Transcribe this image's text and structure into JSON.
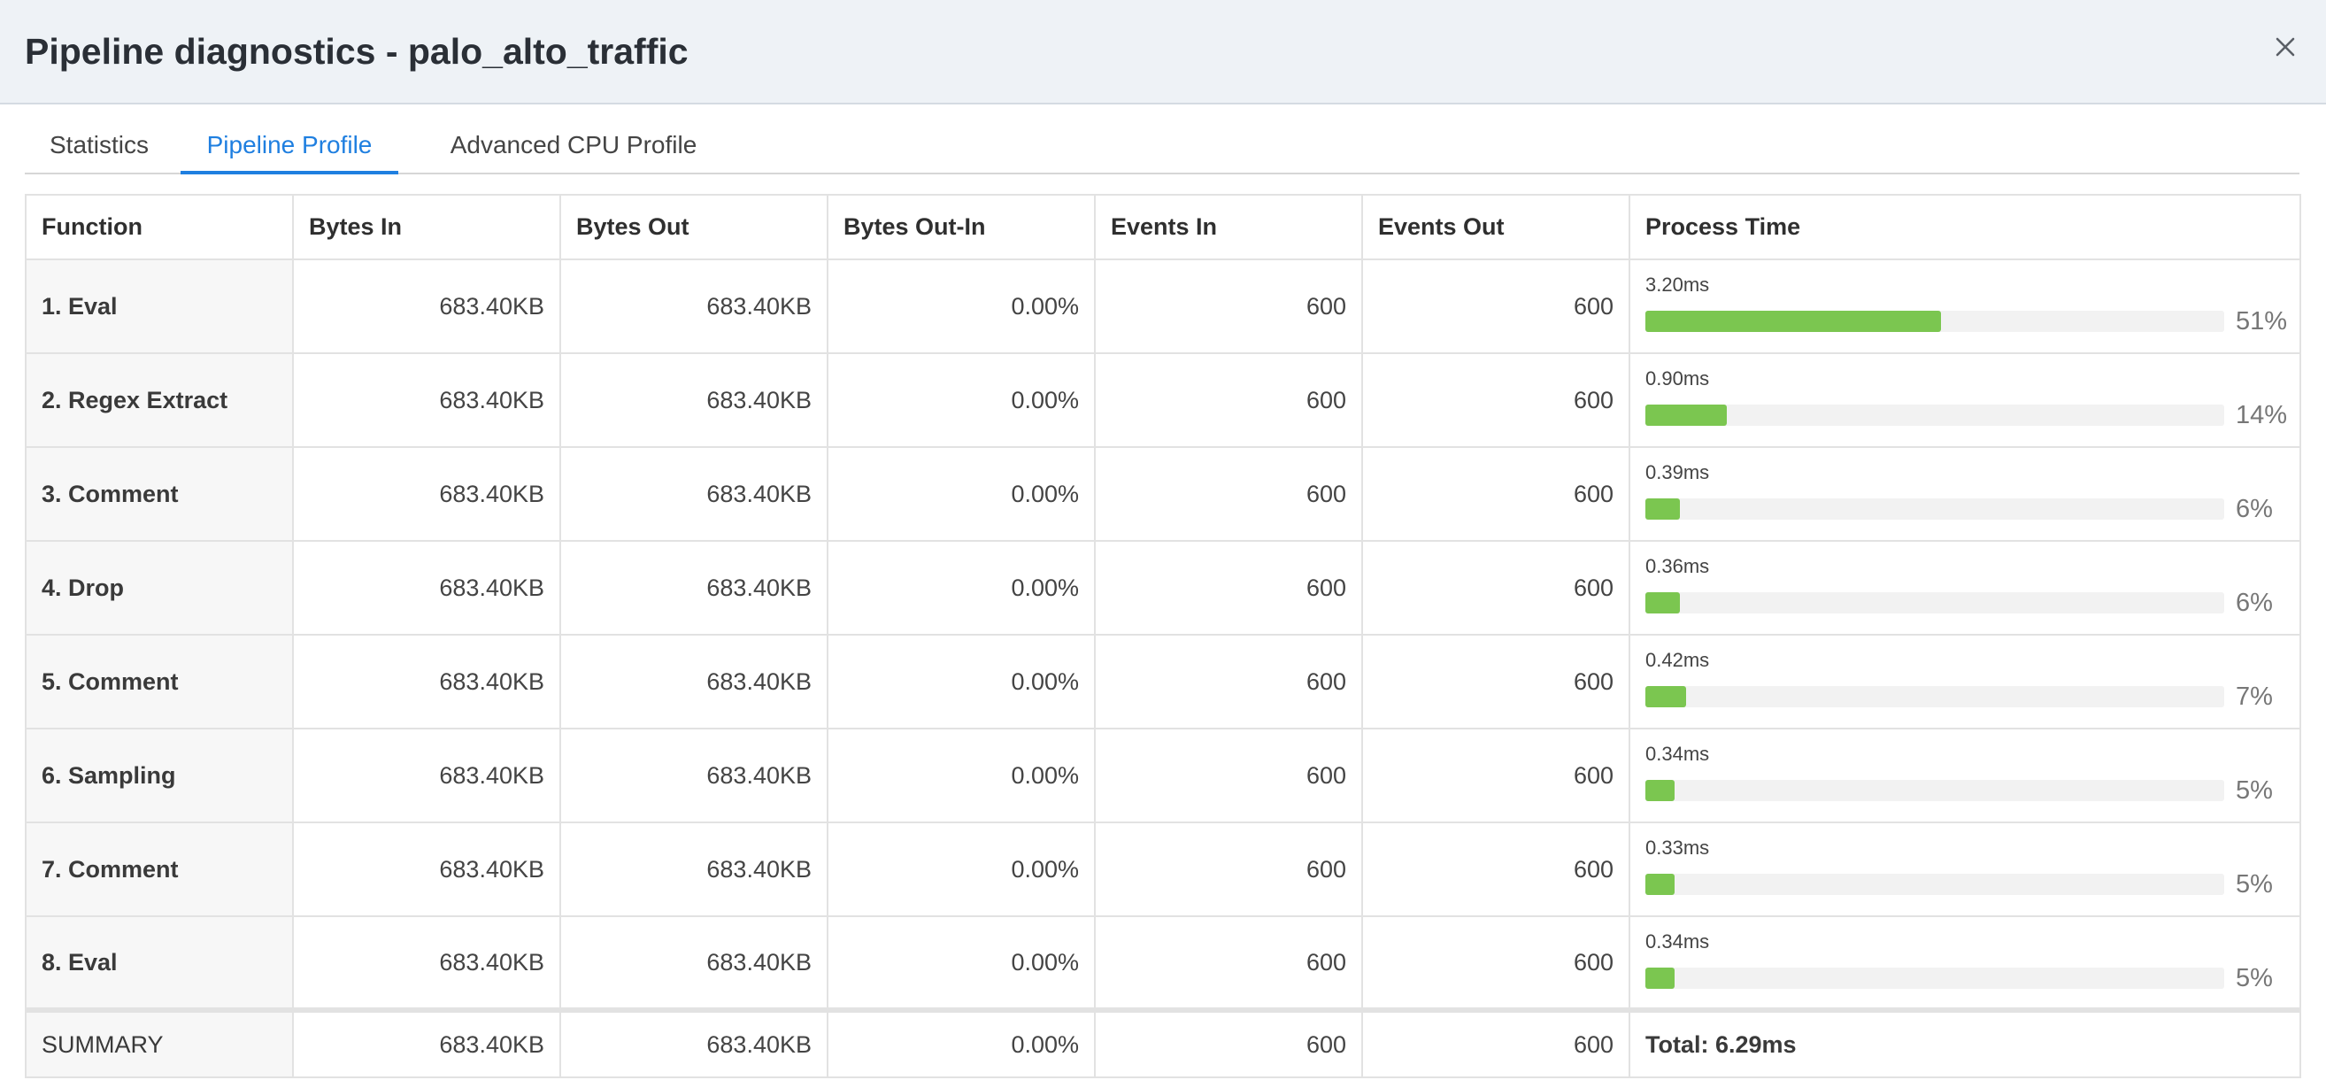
{
  "dialog": {
    "title": "Pipeline diagnostics - palo_alto_traffic",
    "close_icon": "close-icon"
  },
  "tabs": [
    {
      "label": "Statistics",
      "active": false
    },
    {
      "label": "Pipeline Profile",
      "active": true
    },
    {
      "label": "Advanced CPU Profile",
      "active": false
    }
  ],
  "table": {
    "columns": [
      "Function",
      "Bytes In",
      "Bytes Out",
      "Bytes Out-In",
      "Events In",
      "Events Out",
      "Process Time"
    ],
    "rows": [
      {
        "function": "1. Eval",
        "bytes_in": "683.40KB",
        "bytes_out": "683.40KB",
        "bytes_out_in": "0.00%",
        "events_in": "600",
        "events_out": "600",
        "process_time": "3.20ms",
        "percent_label": "51%",
        "percent": 51
      },
      {
        "function": "2. Regex Extract",
        "bytes_in": "683.40KB",
        "bytes_out": "683.40KB",
        "bytes_out_in": "0.00%",
        "events_in": "600",
        "events_out": "600",
        "process_time": "0.90ms",
        "percent_label": "14%",
        "percent": 14
      },
      {
        "function": "3. Comment",
        "bytes_in": "683.40KB",
        "bytes_out": "683.40KB",
        "bytes_out_in": "0.00%",
        "events_in": "600",
        "events_out": "600",
        "process_time": "0.39ms",
        "percent_label": "6%",
        "percent": 6
      },
      {
        "function": "4. Drop",
        "bytes_in": "683.40KB",
        "bytes_out": "683.40KB",
        "bytes_out_in": "0.00%",
        "events_in": "600",
        "events_out": "600",
        "process_time": "0.36ms",
        "percent_label": "6%",
        "percent": 6
      },
      {
        "function": "5. Comment",
        "bytes_in": "683.40KB",
        "bytes_out": "683.40KB",
        "bytes_out_in": "0.00%",
        "events_in": "600",
        "events_out": "600",
        "process_time": "0.42ms",
        "percent_label": "7%",
        "percent": 7
      },
      {
        "function": "6. Sampling",
        "bytes_in": "683.40KB",
        "bytes_out": "683.40KB",
        "bytes_out_in": "0.00%",
        "events_in": "600",
        "events_out": "600",
        "process_time": "0.34ms",
        "percent_label": "5%",
        "percent": 5
      },
      {
        "function": "7. Comment",
        "bytes_in": "683.40KB",
        "bytes_out": "683.40KB",
        "bytes_out_in": "0.00%",
        "events_in": "600",
        "events_out": "600",
        "process_time": "0.33ms",
        "percent_label": "5%",
        "percent": 5
      },
      {
        "function": "8. Eval",
        "bytes_in": "683.40KB",
        "bytes_out": "683.40KB",
        "bytes_out_in": "0.00%",
        "events_in": "600",
        "events_out": "600",
        "process_time": "0.34ms",
        "percent_label": "5%",
        "percent": 5
      }
    ],
    "summary": {
      "function": "SUMMARY",
      "bytes_in": "683.40KB",
      "bytes_out": "683.40KB",
      "bytes_out_in": "0.00%",
      "events_in": "600",
      "events_out": "600",
      "process_time": "Total: 6.29ms"
    }
  },
  "colors": {
    "accent": "#1f7fe0",
    "bar_fill": "#7bc650",
    "bar_track": "#f2f2f2",
    "header_bg": "#eef2f6"
  }
}
